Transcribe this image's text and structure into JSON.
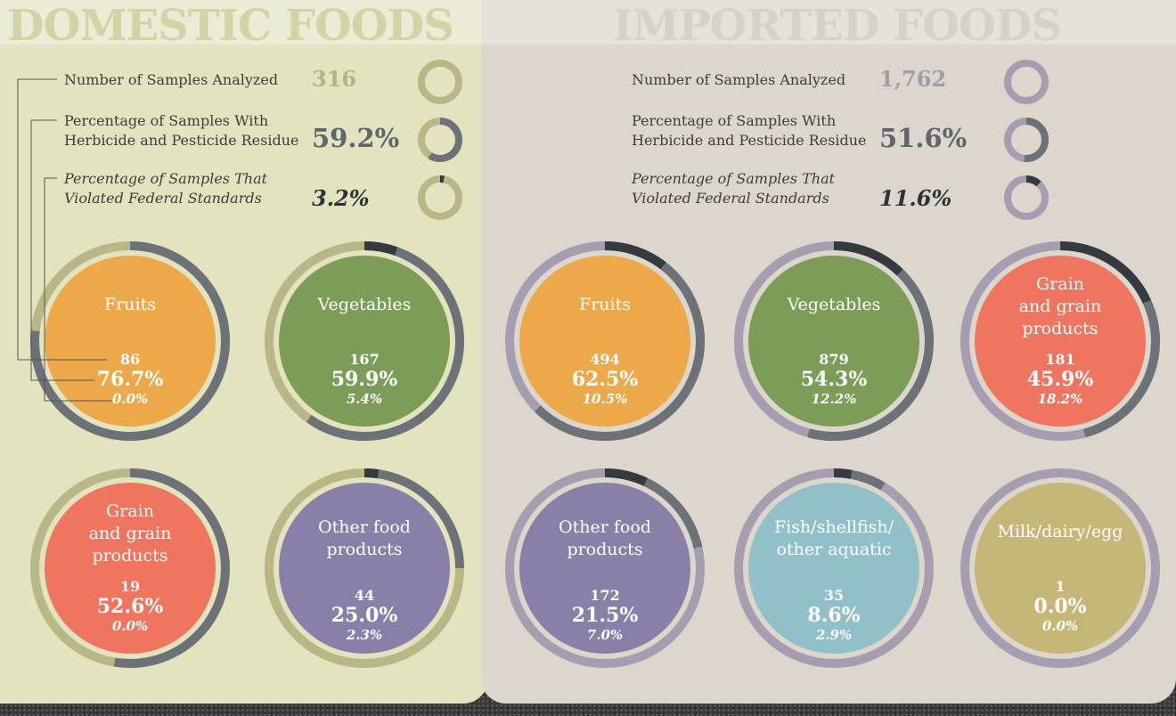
{
  "colors": {
    "domestic_panel": "#e3e3bf",
    "imported_panel": "#dcd6cc",
    "domestic_ring": "#b8b785",
    "imported_ring": "#a69eb0",
    "residue_arc": "#6c7278",
    "violation_arc": "#343a40",
    "fruits": "#eda84a",
    "vegetables": "#7c9c58",
    "grain": "#ef7560",
    "other_food": "#8a7fa8",
    "fish": "#92c0c9",
    "milk": "#c6b677"
  },
  "domestic": {
    "title": "DOMESTIC FOODS",
    "samples_label": "Number of Samples Analyzed",
    "samples_value": "316",
    "residue_label_line1": "Percentage of Samples With",
    "residue_label_line2": "Herbicide and Pesticide Residue",
    "residue_value": "59.2%",
    "violation_label_line1": "Percentage of Samples That",
    "violation_label_line2": "Violated Federal Standards",
    "violation_value": "3.2%"
  },
  "imported": {
    "title": "IMPORTED FOODS",
    "samples_label": "Number of Samples Analyzed",
    "samples_value": "1,762",
    "residue_label_line1": "Percentage of Samples With",
    "residue_label_line2": "Herbicide and Pesticide Residue",
    "residue_value": "51.6%",
    "violation_label_line1": "Percentage of Samples That",
    "violation_label_line2": "Violated Federal Standards",
    "violation_value": "11.6%"
  },
  "chart_data": [
    {
      "type": "pie",
      "group": "domestic",
      "summary": {
        "samples": 316,
        "residue_pct": 59.2,
        "violation_pct": 3.2
      },
      "categories": [
        {
          "name_lines": [
            "Fruits"
          ],
          "color": "fruits",
          "samples": "86",
          "samples_num": 86,
          "residue": "76.7%",
          "residue_pct": 76.7,
          "violation": "0.0%",
          "violation_pct": 0.0
        },
        {
          "name_lines": [
            "Vegetables"
          ],
          "color": "vegetables",
          "samples": "167",
          "samples_num": 167,
          "residue": "59.9%",
          "residue_pct": 59.9,
          "violation": "5.4%",
          "violation_pct": 5.4
        },
        {
          "name_lines": [
            "Grain",
            "and grain",
            "products"
          ],
          "color": "grain",
          "samples": "19",
          "samples_num": 19,
          "residue": "52.6%",
          "residue_pct": 52.6,
          "violation": "0.0%",
          "violation_pct": 0.0
        },
        {
          "name_lines": [
            "Other food",
            "products"
          ],
          "color": "other_food",
          "samples": "44",
          "samples_num": 44,
          "residue": "25.0%",
          "residue_pct": 25.0,
          "violation": "2.3%",
          "violation_pct": 2.3
        }
      ]
    },
    {
      "type": "pie",
      "group": "imported",
      "summary": {
        "samples": 1762,
        "residue_pct": 51.6,
        "violation_pct": 11.6
      },
      "categories": [
        {
          "name_lines": [
            "Fruits"
          ],
          "color": "fruits",
          "samples": "494",
          "samples_num": 494,
          "residue": "62.5%",
          "residue_pct": 62.5,
          "violation": "10.5%",
          "violation_pct": 10.5
        },
        {
          "name_lines": [
            "Vegetables"
          ],
          "color": "vegetables",
          "samples": "879",
          "samples_num": 879,
          "residue": "54.3%",
          "residue_pct": 54.3,
          "violation": "12.2%",
          "violation_pct": 12.2
        },
        {
          "name_lines": [
            "Grain",
            "and grain",
            "products"
          ],
          "color": "grain",
          "samples": "181",
          "samples_num": 181,
          "residue": "45.9%",
          "residue_pct": 45.9,
          "violation": "18.2%",
          "violation_pct": 18.2
        },
        {
          "name_lines": [
            "Other food",
            "products"
          ],
          "color": "other_food",
          "samples": "172",
          "samples_num": 172,
          "residue": "21.5%",
          "residue_pct": 21.5,
          "violation": "7.0%",
          "violation_pct": 7.0
        },
        {
          "name_lines": [
            "Fish/shellfish/",
            "other aquatic"
          ],
          "color": "fish",
          "samples": "35",
          "samples_num": 35,
          "residue": "8.6%",
          "residue_pct": 8.6,
          "violation": "2.9%",
          "violation_pct": 2.9
        },
        {
          "name_lines": [
            "Milk/dairy/egg"
          ],
          "color": "milk",
          "samples": "1",
          "samples_num": 1,
          "residue": "0.0%",
          "residue_pct": 0.0,
          "violation": "0.0%",
          "violation_pct": 0.0
        }
      ]
    }
  ]
}
